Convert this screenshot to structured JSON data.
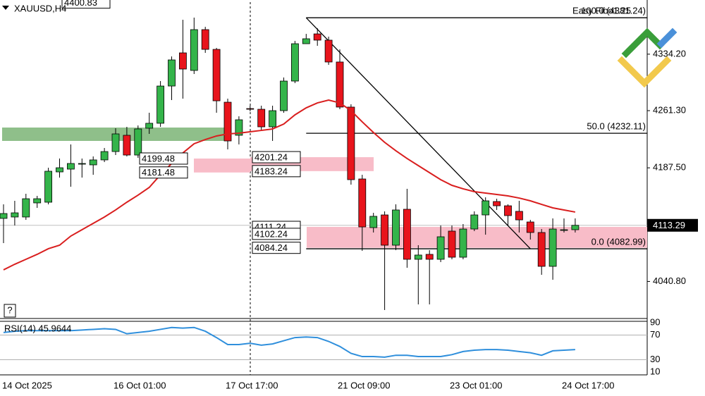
{
  "chart_data": {
    "type": "candlestick",
    "title": "XAUUSD,H4",
    "categories": [
      "14 Oct 2025",
      null,
      null,
      null,
      null,
      null,
      null,
      null,
      null,
      null,
      "16 Oct 01:00",
      null,
      null,
      null,
      null,
      null,
      null,
      null,
      null,
      null,
      "17 Oct 17:00",
      null,
      null,
      null,
      null,
      null,
      null,
      null,
      null,
      null,
      "21 Oct 09:00",
      null,
      null,
      null,
      null,
      null,
      null,
      null,
      null,
      null,
      "23 Oct 01:00",
      null,
      null,
      null,
      null,
      null,
      null,
      null,
      null,
      null,
      "24 Oct 17:00",
      null
    ],
    "open": [
      4122.2,
      4124.0,
      4124.0,
      4142.2,
      4143.1,
      4182.2,
      4185.8,
      4192.2,
      4191.3,
      4197.7,
      4208.5,
      4229.5,
      4204.0,
      4238.6,
      4245.0,
      4293.1,
      4335.9,
      4313.2,
      4365.9,
      4340.4,
      4272.2,
      4229.5,
      4264.0,
      4263.1,
      4240.4,
      4261.3,
      4299.5,
      4347.7,
      4360.4,
      4352.3,
      4324.1,
      4265.9,
      4173.1,
      4110.3,
      4126.7,
      4087.6,
      4134.0,
      4069.4,
      4075.8,
      4069.4,
      4105.8,
      4072.1,
      4108.5,
      4126.7,
      4144.0,
      4138.5,
      4131.3,
      4117.6,
      4104.0,
      4060.3,
      4106.7,
      4107.6
    ],
    "high": [
      4140.3,
      4144.9,
      4154.0,
      4151.3,
      4187.6,
      4199.5,
      4217.7,
      4199.5,
      4202.2,
      4213.1,
      4238.6,
      4240.4,
      4242.2,
      4258.6,
      4299.5,
      4331.3,
      4378.6,
      4381.4,
      4369.5,
      4342.3,
      4276.8,
      4254.0,
      4267.7,
      4267.7,
      4267.7,
      4304.1,
      4351.3,
      4360.4,
      4367.7,
      4356.8,
      4340.4,
      4269.5,
      4178.5,
      4129.4,
      4131.3,
      4140.3,
      4160.4,
      4087.6,
      4081.2,
      4113.1,
      4113.1,
      4114.9,
      4131.3,
      4149.4,
      4147.6,
      4140.3,
      4144.9,
      4120.3,
      4108.5,
      4122.2,
      4122.2,
      4122.2
    ],
    "low": [
      4090.3,
      4113.1,
      4120.3,
      4135.8,
      4140.3,
      4174.9,
      4163.1,
      4174.9,
      4178.5,
      4194.9,
      4204.0,
      4202.2,
      4200.4,
      4231.3,
      4240.4,
      4275.0,
      4276.8,
      4308.6,
      4335.9,
      4258.6,
      4211.3,
      4217.7,
      4260.4,
      4235.8,
      4222.2,
      4258.6,
      4296.8,
      4347.7,
      4345.0,
      4320.4,
      4263.1,
      4165.8,
      4080.3,
      4104.0,
      4003.9,
      4081.2,
      4058.5,
      4011.2,
      4011.2,
      4065.8,
      4069.4,
      4069.4,
      4105.8,
      4101.2,
      4133.1,
      4113.1,
      4104.0,
      4094.9,
      4049.4,
      4043.0,
      4104.0,
      4104.0
    ],
    "close": [
      4128.5,
      4129.4,
      4147.6,
      4147.6,
      4183.1,
      4187.6,
      4193.1,
      4193.1,
      4197.7,
      4208.5,
      4231.3,
      4204.0,
      4237.7,
      4245.0,
      4293.1,
      4326.8,
      4315.0,
      4365.9,
      4340.4,
      4274.0,
      4222.2,
      4249.5,
      4263.1,
      4240.4,
      4261.3,
      4299.5,
      4347.7,
      4354.1,
      4352.3,
      4324.1,
      4265.9,
      4172.2,
      4111.2,
      4124.9,
      4087.6,
      4133.1,
      4069.4,
      4074.9,
      4069.4,
      4098.5,
      4072.1,
      4108.5,
      4126.7,
      4144.9,
      4138.5,
      4125.8,
      4120.3,
      4104.0,
      4060.3,
      4108.5,
      4107.6,
      4113.29
    ],
    "up_color": "#34b44a",
    "down_color": "#e8141c",
    "ylim": [
      3993.0,
      4401.4
    ],
    "yticks": [
      {
        "value": 4334.2,
        "label": "4334.20"
      },
      {
        "value": 4261.3,
        "label": "4261.30"
      },
      {
        "value": 4187.5,
        "label": "4187.50"
      },
      {
        "value": 4040.8,
        "label": "4040.80"
      }
    ],
    "current_price": 4113.29,
    "top_price_label": 4400.83,
    "ma": {
      "color": "#d91e1e",
      "values": [
        4055.8,
        4063.0,
        4069.4,
        4075.8,
        4083.1,
        4087.6,
        4099.4,
        4107.6,
        4115.8,
        4124.0,
        4133.1,
        4143.1,
        4152.2,
        4162.2,
        4178.5,
        4193.1,
        4206.7,
        4218.6,
        4224.0,
        4228.6,
        4231.3,
        4232.2,
        4234.0,
        4235.8,
        4237.7,
        4244.0,
        4255.9,
        4264.9,
        4271.3,
        4274.9,
        4271.3,
        4261.3,
        4246.8,
        4233.1,
        4220.4,
        4209.5,
        4199.5,
        4190.4,
        4181.3,
        4172.2,
        4164.9,
        4160.4,
        4156.7,
        4154.9,
        4153.1,
        4151.3,
        4148.5,
        4144.9,
        4140.3,
        4135.8,
        4133.1,
        4130.4
      ]
    },
    "fibo": {
      "name": "Easy Fibo1.25",
      "levels": [
        {
          "value": 4381.24,
          "label": "100.0 (4381.24)"
        },
        {
          "value": 4232.11,
          "label": "50.0 (4232.11)"
        },
        {
          "value": 4082.99,
          "label": "0.0 (4082.99)"
        }
      ]
    },
    "zones": [
      {
        "high": 4199.48,
        "low": 4181.48
      },
      {
        "high": 4201.24,
        "low": 4183.24
      },
      {
        "high": 4111.24,
        "mid": 4102.24,
        "low": 4084.24
      }
    ],
    "help": "?",
    "rsi": {
      "title": "RSI(14) 45.9644",
      "color": "#2f8fdc",
      "ylim": [
        10,
        90
      ],
      "yticks": [
        90,
        70,
        30,
        10
      ],
      "values": [
        74.1,
        76.2,
        77.2,
        77.2,
        77.2,
        77.2,
        77.2,
        78.2,
        79.2,
        80.3,
        79.2,
        72.1,
        74.1,
        76.2,
        79.2,
        82.3,
        81.3,
        82.3,
        76.2,
        65.9,
        54.6,
        54.6,
        56.7,
        53.6,
        55.6,
        60.8,
        65.9,
        66.9,
        65.9,
        59.7,
        51.5,
        40.3,
        35.1,
        35.1,
        34.1,
        37.2,
        37.2,
        35.1,
        35.1,
        35.1,
        38.2,
        43.3,
        45.4,
        46.4,
        46.4,
        45.4,
        43.3,
        41.3,
        37.2,
        44.4,
        45.4,
        46.4
      ]
    }
  }
}
